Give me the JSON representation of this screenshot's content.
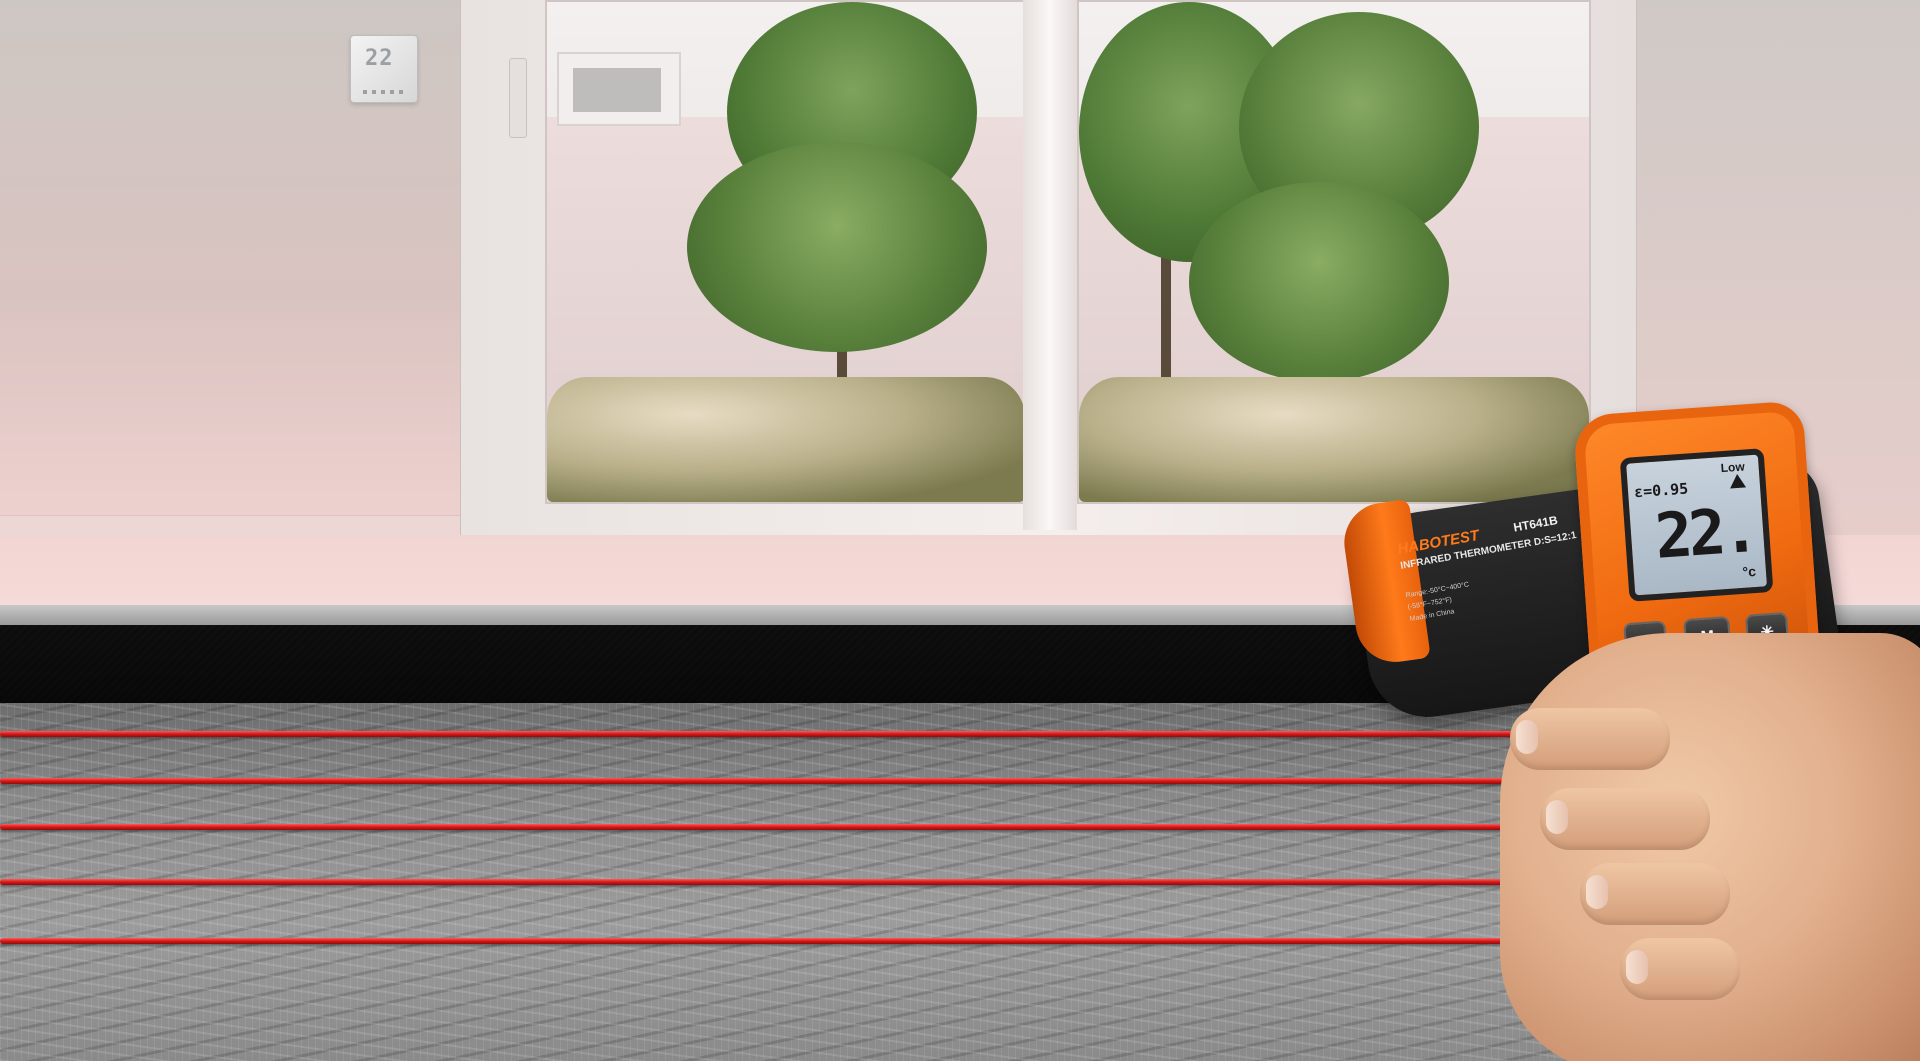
{
  "scene": {
    "description_label": "",
    "thermostat": {
      "display": "22"
    },
    "thermometer": {
      "brand": "HABOTEST",
      "model": "HT641B",
      "product": "INFRARED THERMOMETER D:S=12:1",
      "spec_lines": [
        "Range:-50°C~400°C",
        "(-58°F~752°F)",
        "Made in China"
      ],
      "lcd": {
        "mode": "Low",
        "emissivity": "ε=0.95",
        "temperature": "22.",
        "unit": "°c"
      },
      "buttons": [
        "▲",
        "M",
        "✳"
      ]
    },
    "colors": {
      "cable": "#d81818",
      "thermometer_orange": "#f06a10",
      "foil": "#8c8c8c"
    }
  }
}
